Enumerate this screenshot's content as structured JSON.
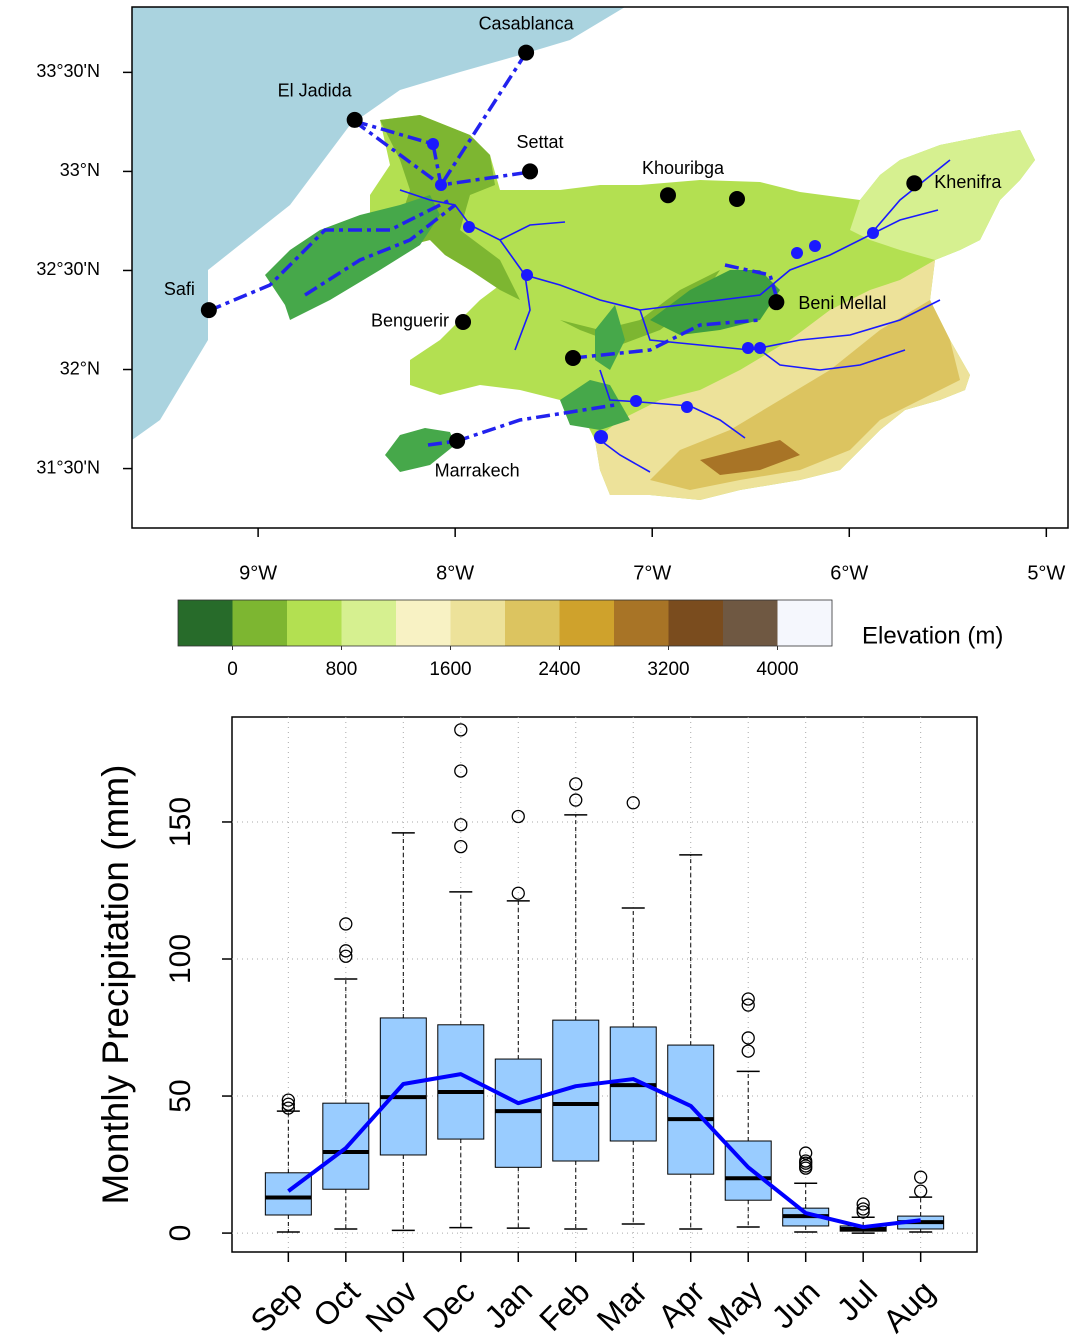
{
  "chart_data": [
    {
      "type": "map",
      "xlim": [
        -9.64,
        -4.89
      ],
      "ylim": [
        31.2,
        33.83
      ],
      "xticks": [
        {
          "value": -9,
          "label": "9°W"
        },
        {
          "value": -8,
          "label": "8°W"
        },
        {
          "value": -7,
          "label": "7°W"
        },
        {
          "value": -6,
          "label": "6°W"
        },
        {
          "value": -5,
          "label": "5°W"
        }
      ],
      "yticks": [
        {
          "value": 31.5,
          "label": "31°30'N"
        },
        {
          "value": 32,
          "label": "32°N"
        },
        {
          "value": 32.5,
          "label": "32°30'N"
        },
        {
          "value": 33,
          "label": "33°N"
        },
        {
          "value": 33.5,
          "label": "33°30'N"
        }
      ],
      "cities": [
        {
          "name": "Casablanca",
          "lon": -7.64,
          "lat": 33.6
        },
        {
          "name": "El Jadida",
          "lon": -8.51,
          "lat": 33.26
        },
        {
          "name": "Settat",
          "lon": -7.62,
          "lat": 33.0
        },
        {
          "name": "Khouribga",
          "lon": -6.92,
          "lat": 32.88
        },
        {
          "name": "Khenifra",
          "lon": -5.67,
          "lat": 32.94
        },
        {
          "name": "Beni Mellal",
          "lon": -6.37,
          "lat": 32.34
        },
        {
          "name": "Benguerir",
          "lon": -7.96,
          "lat": 32.24
        },
        {
          "name": "Safi",
          "lon": -9.25,
          "lat": 32.3
        },
        {
          "name": "Marrakech",
          "lon": -7.99,
          "lat": 31.64
        }
      ],
      "colorbar": {
        "title": "Elevation (m)",
        "range": [
          -400,
          4400
        ],
        "ticks": [
          0,
          800,
          1600,
          2400,
          3200,
          4000
        ],
        "colors": [
          "#276b2a",
          "#7db631",
          "#b3e051",
          "#d6f090",
          "#f8f2c4",
          "#ede29a",
          "#dcc460",
          "#cfa22c",
          "#a87426",
          "#7a4c1e",
          "#6f5842",
          "#f5f7fd"
        ]
      }
    },
    {
      "type": "boxplot",
      "ylabel": "Monthly Precipitation (mm)",
      "ylim": [
        -6.9,
        188.3
      ],
      "yticks": [
        0,
        50,
        100,
        150
      ],
      "grid": true,
      "color": "#99ccff",
      "categories": [
        "Sep",
        "Oct",
        "Nov",
        "Dec",
        "Jan",
        "Feb",
        "Mar",
        "Apr",
        "May",
        "Jun",
        "Jul",
        "Aug"
      ],
      "boxes": [
        {
          "whislo": 0.4,
          "q1": 6.6,
          "median": 13,
          "q3": 22,
          "whishi": 44.5,
          "outliers": [
            45.6,
            47,
            48.5
          ]
        },
        {
          "whislo": 1.5,
          "q1": 16,
          "median": 29.6,
          "q3": 47.4,
          "whishi": 92.7,
          "outliers": [
            101,
            103,
            112.8
          ]
        },
        {
          "whislo": 1,
          "q1": 28.5,
          "median": 49.6,
          "q3": 78.5,
          "whishi": 146,
          "outliers": []
        },
        {
          "whislo": 2,
          "q1": 34.3,
          "median": 51.5,
          "q3": 76,
          "whishi": 124.5,
          "outliers": [
            141,
            149,
            168.6,
            183.6
          ]
        },
        {
          "whislo": 1.8,
          "q1": 24,
          "median": 44.5,
          "q3": 63.5,
          "whishi": 121.2,
          "outliers": [
            124,
            152
          ]
        },
        {
          "whislo": 1.5,
          "q1": 26.3,
          "median": 47.1,
          "q3": 77.7,
          "whishi": 152.6,
          "outliers": [
            158,
            163.9
          ]
        },
        {
          "whislo": 3.3,
          "q1": 33.6,
          "median": 54,
          "q3": 75.2,
          "whishi": 118.6,
          "outliers": [
            157
          ]
        },
        {
          "whislo": 1.5,
          "q1": 21.5,
          "median": 41.6,
          "q3": 68.6,
          "whishi": 138,
          "outliers": []
        },
        {
          "whislo": 2.2,
          "q1": 12,
          "median": 20,
          "q3": 33.6,
          "whishi": 59,
          "outliers": [
            66.4,
            71.2,
            83.2,
            85.4
          ]
        },
        {
          "whislo": 0.4,
          "q1": 2.6,
          "median": 6.2,
          "q3": 9.1,
          "whishi": 18.2,
          "outliers": [
            23.7,
            24.5,
            25.5,
            26.3,
            29.2
          ]
        },
        {
          "whislo": 0,
          "q1": 0.7,
          "median": 1.5,
          "q3": 2.6,
          "whishi": 5.8,
          "outliers": [
            7.7,
            8.8,
            10.6
          ]
        },
        {
          "whislo": 0.4,
          "q1": 1.5,
          "median": 4,
          "q3": 6.2,
          "whishi": 13.1,
          "outliers": [
            15.3,
            20.4
          ]
        }
      ],
      "mean": {
        "color": "#0000ff",
        "values": [
          15.3,
          31,
          54.4,
          58,
          47.4,
          53.6,
          56.2,
          46.4,
          24,
          7.3,
          2.2,
          4.7
        ]
      }
    }
  ]
}
